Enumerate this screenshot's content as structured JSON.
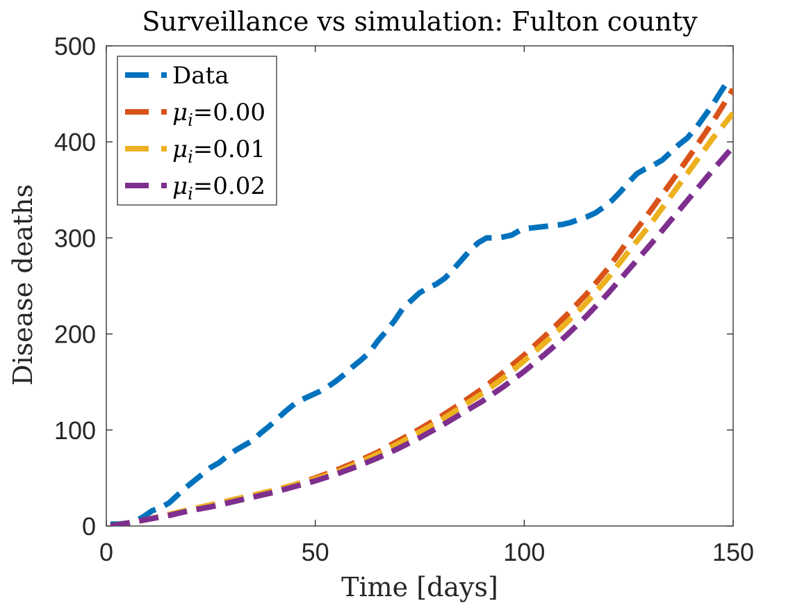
{
  "chart_data": {
    "type": "line",
    "title": "Surveillance vs simulation: Fulton county",
    "xlabel": "Time [days]",
    "ylabel": "Disease deaths",
    "xlim": [
      0,
      150
    ],
    "ylim": [
      0,
      500
    ],
    "xticks": [
      0,
      50,
      100,
      150
    ],
    "yticks": [
      0,
      100,
      200,
      300,
      400,
      500
    ],
    "legend_position": "top-left",
    "series": [
      {
        "name": "Data",
        "label_main": "Data",
        "label_sub": "",
        "label_value": "",
        "color": "#0072BD",
        "x": [
          1,
          3,
          5,
          7,
          9,
          11,
          13,
          15,
          17,
          19,
          21,
          23,
          25,
          27,
          29,
          31,
          33,
          35,
          37,
          39,
          41,
          43,
          45,
          47,
          49,
          51,
          53,
          55,
          57,
          59,
          61,
          63,
          65,
          67,
          69,
          71,
          73,
          75,
          77,
          79,
          81,
          83,
          85,
          87,
          89,
          91,
          93,
          95,
          97,
          99,
          101,
          103,
          105,
          107,
          109,
          111,
          113,
          115,
          117,
          119,
          121,
          123,
          125,
          127,
          129,
          131,
          133,
          135,
          137,
          139,
          141,
          143,
          145,
          147,
          149
        ],
        "y": [
          2,
          2,
          3,
          5,
          10,
          16,
          19,
          24,
          32,
          40,
          47,
          54,
          61,
          66,
          73,
          79,
          84,
          89,
          97,
          104,
          112,
          120,
          127,
          132,
          136,
          140,
          145,
          151,
          158,
          166,
          173,
          181,
          193,
          203,
          214,
          227,
          235,
          243,
          248,
          252,
          258,
          267,
          277,
          287,
          295,
          300,
          300,
          301,
          303,
          308,
          310,
          311,
          312,
          313,
          314,
          316,
          319,
          322,
          326,
          332,
          339,
          348,
          358,
          367,
          372,
          376,
          381,
          389,
          397,
          404,
          414,
          426,
          438,
          452,
          465
        ]
      },
      {
        "name": "mu_i=0.00",
        "label_main": "μ",
        "label_sub": "i",
        "label_value": "=0.00",
        "color": "#D95319",
        "x": [
          1,
          5,
          10,
          15,
          20,
          25,
          30,
          35,
          40,
          45,
          50,
          55,
          60,
          65,
          70,
          75,
          80,
          85,
          90,
          95,
          100,
          105,
          110,
          115,
          120,
          125,
          130,
          135,
          140,
          145,
          150
        ],
        "y": [
          0,
          3,
          7,
          12,
          17,
          22,
          27,
          32,
          37,
          43,
          50,
          58,
          67,
          77,
          89,
          101,
          114,
          128,
          143,
          160,
          178,
          198,
          219,
          242,
          268,
          298,
          327,
          357,
          388,
          420,
          455
        ]
      },
      {
        "name": "mu_i=0.01",
        "label_main": "μ",
        "label_sub": "i",
        "label_value": "=0.01",
        "color": "#EDB120",
        "x": [
          1,
          5,
          10,
          15,
          20,
          25,
          30,
          35,
          40,
          45,
          50,
          55,
          60,
          65,
          70,
          75,
          80,
          85,
          90,
          95,
          100,
          105,
          110,
          115,
          120,
          125,
          130,
          135,
          140,
          145,
          150
        ],
        "y": [
          0,
          3,
          7,
          12,
          17,
          22,
          27,
          32,
          37,
          43,
          49,
          56,
          65,
          75,
          86,
          98,
          110,
          124,
          138,
          154,
          172,
          191,
          211,
          233,
          258,
          286,
          313,
          343,
          373,
          403,
          430
        ]
      },
      {
        "name": "mu_i=0.02",
        "label_main": "μ",
        "label_sub": "i",
        "label_value": "=0.02",
        "color": "#7E2F8E",
        "x": [
          1,
          5,
          10,
          15,
          20,
          25,
          30,
          35,
          40,
          45,
          50,
          55,
          60,
          65,
          70,
          75,
          80,
          85,
          90,
          95,
          100,
          105,
          110,
          115,
          120,
          125,
          130,
          135,
          140,
          145,
          150
        ],
        "y": [
          0,
          3,
          7,
          11,
          16,
          20,
          25,
          30,
          35,
          41,
          47,
          54,
          62,
          71,
          81,
          92,
          104,
          117,
          130,
          145,
          161,
          179,
          198,
          219,
          242,
          267,
          292,
          318,
          344,
          370,
          395
        ]
      }
    ]
  }
}
